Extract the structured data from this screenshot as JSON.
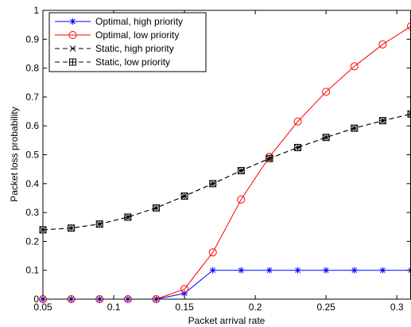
{
  "chart_data": {
    "type": "line",
    "xlabel": "Packet arrival rate",
    "ylabel": "Packet loss probability",
    "xlim": [
      0.05,
      0.31
    ],
    "ylim": [
      0,
      1
    ],
    "xticks": [
      0.05,
      0.1,
      0.15,
      0.2,
      0.25,
      0.3
    ],
    "xtick_labels": [
      "0.05",
      "0.1",
      "0.15",
      "0.2",
      "0.25",
      "0.3"
    ],
    "yticks": [
      0,
      0.1,
      0.2,
      0.3,
      0.4,
      0.5,
      0.6,
      0.7,
      0.8,
      0.9,
      1
    ],
    "ytick_labels": [
      "0",
      "0.1",
      "0.2",
      "0.3",
      "0.4",
      "0.5",
      "0.6",
      "0.7",
      "0.8",
      "0.9",
      "1"
    ],
    "grid": false,
    "legend_position": "top-left",
    "x": [
      0.05,
      0.07,
      0.09,
      0.11,
      0.13,
      0.15,
      0.17,
      0.19,
      0.21,
      0.23,
      0.25,
      0.27,
      0.29,
      0.31
    ],
    "series": [
      {
        "name": "Optimal, high priority",
        "color": "#0000ff",
        "line": "solid",
        "marker": "asterisk",
        "values": [
          0,
          0,
          0,
          0,
          0,
          0.02,
          0.1,
          0.1,
          0.1,
          0.1,
          0.1,
          0.1,
          0.1,
          0.1
        ]
      },
      {
        "name": "Optimal, low priority",
        "color": "#ff0000",
        "line": "solid",
        "marker": "circle",
        "values": [
          0,
          0,
          0,
          0,
          0,
          0.035,
          0.162,
          0.345,
          0.493,
          0.615,
          0.718,
          0.806,
          0.882,
          0.945
        ]
      },
      {
        "name": "Static, high priority",
        "color": "#000000",
        "line": "dashed",
        "marker": "x",
        "values": [
          0.24,
          0.246,
          0.26,
          0.284,
          0.316,
          0.357,
          0.4,
          0.445,
          0.487,
          0.525,
          0.56,
          0.592,
          0.618,
          0.641
        ]
      },
      {
        "name": "Static, low priority",
        "color": "#000000",
        "line": "dashed",
        "marker": "boxed-plus",
        "values": [
          0.24,
          0.246,
          0.26,
          0.284,
          0.316,
          0.357,
          0.4,
          0.445,
          0.487,
          0.525,
          0.56,
          0.592,
          0.618,
          0.641
        ]
      }
    ]
  }
}
